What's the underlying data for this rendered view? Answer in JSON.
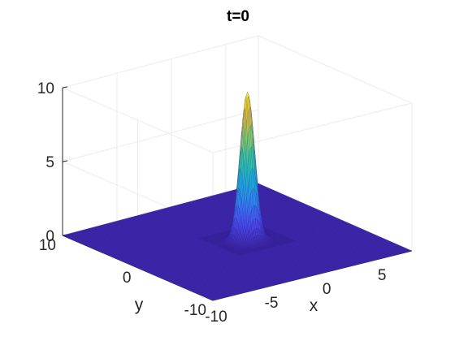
{
  "chart_data": {
    "type": "surface",
    "title": "t=0",
    "xlabel": "x",
    "ylabel": "y",
    "zlabel": "",
    "xlim": [
      -10,
      8
    ],
    "ylim": [
      -10,
      10
    ],
    "zlim": [
      0,
      10
    ],
    "x_ticks": [
      -10,
      -5,
      0,
      5
    ],
    "y_ticks": [
      -10,
      0,
      10
    ],
    "z_ticks": [
      0,
      5,
      10
    ],
    "x_tick_labels": [
      "-10",
      "-5",
      "0",
      "5"
    ],
    "y_tick_labels": [
      "-10",
      "0",
      "10"
    ],
    "z_tick_labels": [
      "0",
      "5",
      "10"
    ],
    "grid": true,
    "colormap": "parula",
    "colormap_stops": [
      "#3e26a8",
      "#4a4bf0",
      "#2e86ef",
      "#1bb0d4",
      "#37c49e",
      "#91c860",
      "#e2b939",
      "#f9fb15"
    ],
    "surface": {
      "function": "gaussian",
      "peak": 10,
      "center": [
        0,
        0
      ],
      "sigma": 0.55
    }
  }
}
